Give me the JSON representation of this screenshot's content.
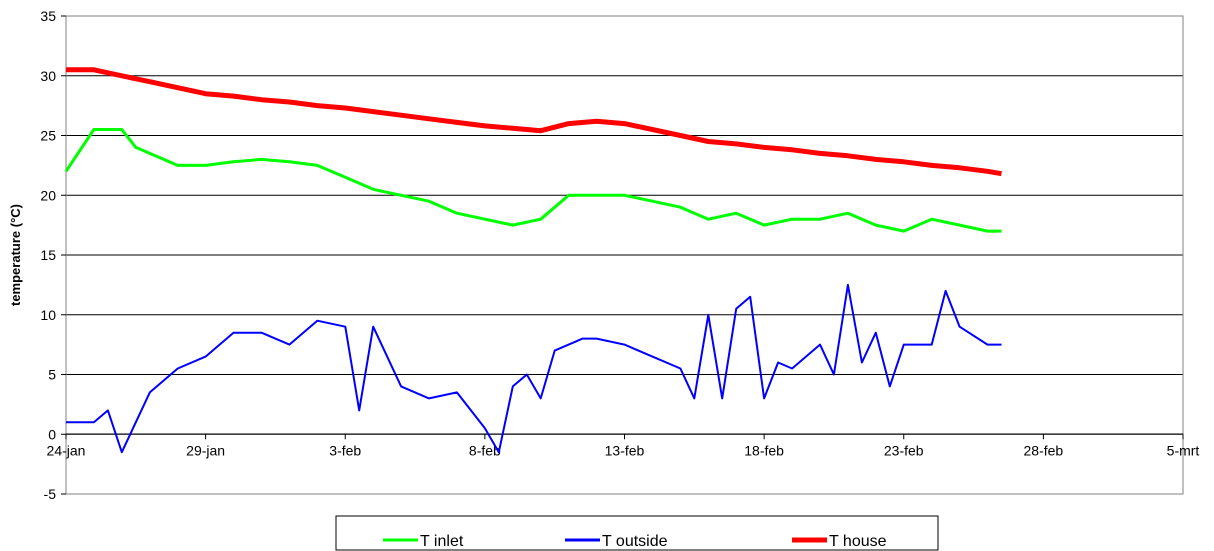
{
  "chart_data": {
    "type": "line",
    "ylabel": "temperature (°C)",
    "xlabel": "",
    "ylim": [
      -5,
      35
    ],
    "yticks": [
      -5,
      0,
      5,
      10,
      15,
      20,
      25,
      30,
      35
    ],
    "xlim": [
      "24-jan",
      "5-mrt"
    ],
    "xtick_labels": [
      "24-jan",
      "29-jan",
      "3-feb",
      "8-feb",
      "13-feb",
      "18-feb",
      "23-feb",
      "28-feb",
      "5-mrt"
    ],
    "grid": "horizontal",
    "legend_position": "bottom",
    "series": [
      {
        "name": "T inlet",
        "color": "#00ff00",
        "points": [
          [
            "24-jan",
            22.0
          ],
          [
            "25-jan",
            25.5
          ],
          [
            "26-jan",
            25.5
          ],
          [
            "26-jan 12:00",
            24.0
          ],
          [
            "27-jan",
            23.5
          ],
          [
            "28-jan",
            22.5
          ],
          [
            "29-jan",
            22.5
          ],
          [
            "30-jan",
            22.8
          ],
          [
            "31-jan",
            23.0
          ],
          [
            "1-feb",
            22.8
          ],
          [
            "2-feb",
            22.5
          ],
          [
            "3-feb",
            21.5
          ],
          [
            "4-feb",
            20.5
          ],
          [
            "5-feb",
            20.0
          ],
          [
            "6-feb",
            19.5
          ],
          [
            "7-feb",
            18.5
          ],
          [
            "8-feb",
            18.0
          ],
          [
            "9-feb",
            17.5
          ],
          [
            "10-feb",
            18.0
          ],
          [
            "11-feb",
            20.0
          ],
          [
            "12-feb",
            20.0
          ],
          [
            "13-feb",
            20.0
          ],
          [
            "14-feb",
            19.5
          ],
          [
            "15-feb",
            19.0
          ],
          [
            "16-feb",
            18.0
          ],
          [
            "17-feb",
            18.5
          ],
          [
            "18-feb",
            17.5
          ],
          [
            "19-feb",
            18.0
          ],
          [
            "20-feb",
            18.0
          ],
          [
            "21-feb",
            18.5
          ],
          [
            "22-feb",
            17.5
          ],
          [
            "23-feb",
            17.0
          ],
          [
            "24-feb",
            18.0
          ],
          [
            "25-feb",
            17.5
          ],
          [
            "26-feb",
            17.0
          ],
          [
            "26-feb 12:00",
            17.0
          ]
        ]
      },
      {
        "name": "T outside",
        "color": "#0000ff",
        "points": [
          [
            "24-jan",
            1.0
          ],
          [
            "25-jan",
            1.0
          ],
          [
            "25-jan 12:00",
            2.0
          ],
          [
            "26-jan",
            -1.5
          ],
          [
            "26-jan 12:00",
            1.0
          ],
          [
            "27-jan",
            3.5
          ],
          [
            "28-jan",
            5.5
          ],
          [
            "29-jan",
            6.5
          ],
          [
            "30-jan",
            8.5
          ],
          [
            "31-jan",
            8.5
          ],
          [
            "1-feb",
            7.5
          ],
          [
            "2-feb",
            9.5
          ],
          [
            "3-feb",
            9.0
          ],
          [
            "3-feb 12:00",
            2.0
          ],
          [
            "4-feb",
            9.0
          ],
          [
            "5-feb",
            4.0
          ],
          [
            "6-feb",
            3.0
          ],
          [
            "7-feb",
            3.5
          ],
          [
            "8-feb",
            0.5
          ],
          [
            "8-feb 12:00",
            -1.5
          ],
          [
            "9-feb",
            4.0
          ],
          [
            "9-feb 12:00",
            5.0
          ],
          [
            "10-feb",
            3.0
          ],
          [
            "10-feb 12:00",
            7.0
          ],
          [
            "11-feb",
            7.5
          ],
          [
            "11-feb 12:00",
            8.0
          ],
          [
            "12-feb",
            8.0
          ],
          [
            "13-feb",
            7.5
          ],
          [
            "14-feb",
            6.5
          ],
          [
            "15-feb",
            5.5
          ],
          [
            "15-feb 12:00",
            3.0
          ],
          [
            "16-feb",
            10.0
          ],
          [
            "16-feb 12:00",
            3.0
          ],
          [
            "17-feb",
            10.5
          ],
          [
            "17-feb 12:00",
            11.5
          ],
          [
            "18-feb",
            3.0
          ],
          [
            "18-feb 12:00",
            6.0
          ],
          [
            "19-feb",
            5.5
          ],
          [
            "20-feb",
            7.5
          ],
          [
            "20-feb 12:00",
            5.0
          ],
          [
            "21-feb",
            12.5
          ],
          [
            "21-feb 12:00",
            6.0
          ],
          [
            "22-feb",
            8.5
          ],
          [
            "22-feb 12:00",
            4.0
          ],
          [
            "23-feb",
            7.5
          ],
          [
            "24-feb",
            7.5
          ],
          [
            "24-feb 12:00",
            12.0
          ],
          [
            "25-feb",
            9.0
          ],
          [
            "26-feb",
            7.5
          ],
          [
            "26-feb 12:00",
            7.5
          ]
        ]
      },
      {
        "name": "T house",
        "color": "#ff0000",
        "points": [
          [
            "24-jan",
            30.5
          ],
          [
            "25-jan",
            30.5
          ],
          [
            "26-jan",
            30.0
          ],
          [
            "27-jan",
            29.5
          ],
          [
            "28-jan",
            29.0
          ],
          [
            "29-jan",
            28.5
          ],
          [
            "30-jan",
            28.3
          ],
          [
            "31-jan",
            28.0
          ],
          [
            "1-feb",
            27.8
          ],
          [
            "2-feb",
            27.5
          ],
          [
            "3-feb",
            27.3
          ],
          [
            "4-feb",
            27.0
          ],
          [
            "5-feb",
            26.7
          ],
          [
            "6-feb",
            26.4
          ],
          [
            "7-feb",
            26.1
          ],
          [
            "8-feb",
            25.8
          ],
          [
            "9-feb",
            25.6
          ],
          [
            "10-feb",
            25.4
          ],
          [
            "11-feb",
            26.0
          ],
          [
            "12-feb",
            26.2
          ],
          [
            "13-feb",
            26.0
          ],
          [
            "14-feb",
            25.5
          ],
          [
            "15-feb",
            25.0
          ],
          [
            "16-feb",
            24.5
          ],
          [
            "17-feb",
            24.3
          ],
          [
            "18-feb",
            24.0
          ],
          [
            "19-feb",
            23.8
          ],
          [
            "20-feb",
            23.5
          ],
          [
            "21-feb",
            23.3
          ],
          [
            "22-feb",
            23.0
          ],
          [
            "23-feb",
            22.8
          ],
          [
            "24-feb",
            22.5
          ],
          [
            "25-feb",
            22.3
          ],
          [
            "26-feb",
            22.0
          ],
          [
            "26-feb 12:00",
            21.8
          ]
        ]
      }
    ]
  }
}
